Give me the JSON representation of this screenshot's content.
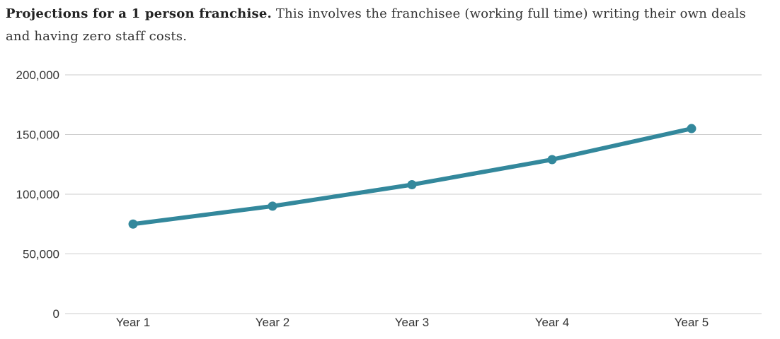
{
  "intro": {
    "bold": "Projections for a 1 person franchise.",
    "rest": " This involves the franchisee (working full time) writing their own deals and having zero staff costs."
  },
  "chart_data": {
    "type": "line",
    "categories": [
      "Year 1",
      "Year 2",
      "Year 3",
      "Year 4",
      "Year 5"
    ],
    "series": [
      {
        "values": [
          75000,
          90000,
          108000,
          129000,
          155000
        ],
        "color": "#33889c"
      }
    ],
    "yticks": [
      0,
      50000,
      100000,
      150000,
      200000
    ],
    "ytick_labels": [
      "0",
      "50,000",
      "100,000",
      "150,000",
      "200,000"
    ],
    "ylim": [
      0,
      200000
    ],
    "grid": true,
    "legend": "none",
    "title": "",
    "xlabel": "",
    "ylabel": ""
  }
}
